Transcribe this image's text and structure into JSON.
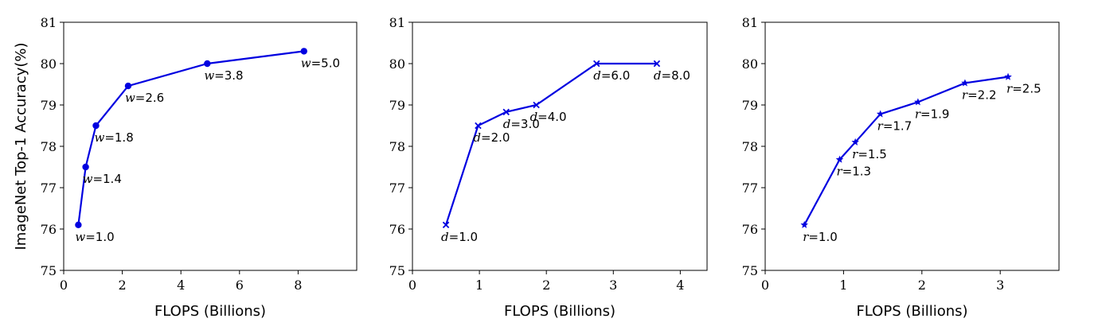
{
  "chart_data": [
    {
      "type": "line",
      "marker": "circle",
      "xlabel": "FLOPS (Billions)",
      "ylabel": "ImageNet Top-1 Accuracy(%)",
      "xlim": [
        0,
        10
      ],
      "ylim": [
        75,
        81
      ],
      "xticks": [
        "0",
        "2",
        "4",
        "6",
        "8"
      ],
      "yticks": [
        "75",
        "76",
        "77",
        "78",
        "79",
        "80",
        "81"
      ],
      "grid": false,
      "series_color": "#0000e0",
      "points": [
        {
          "x": 0.5,
          "y": 76.1,
          "var": "w",
          "val": "=1.0"
        },
        {
          "x": 0.75,
          "y": 77.5,
          "var": "w",
          "val": "=1.4"
        },
        {
          "x": 1.1,
          "y": 78.5,
          "var": "w",
          "val": "=1.8"
        },
        {
          "x": 2.2,
          "y": 79.46,
          "var": "w",
          "val": "=2.6"
        },
        {
          "x": 4.9,
          "y": 80.0,
          "var": "w",
          "val": "=3.8"
        },
        {
          "x": 8.2,
          "y": 80.3,
          "var": "w",
          "val": "=5.0"
        }
      ]
    },
    {
      "type": "line",
      "marker": "x",
      "xlabel": "FLOPS (Billions)",
      "ylabel": "",
      "xlim": [
        0,
        4.4
      ],
      "ylim": [
        75,
        81
      ],
      "xticks": [
        "0",
        "1",
        "2",
        "3",
        "4"
      ],
      "yticks": [
        "75",
        "76",
        "77",
        "78",
        "79",
        "80",
        "81"
      ],
      "grid": false,
      "series_color": "#0000e0",
      "points": [
        {
          "x": 0.5,
          "y": 76.1,
          "var": "d",
          "val": "=1.0"
        },
        {
          "x": 0.98,
          "y": 78.5,
          "var": "d",
          "val": "=2.0"
        },
        {
          "x": 1.4,
          "y": 78.83,
          "var": "d",
          "val": "=3.0"
        },
        {
          "x": 1.85,
          "y": 79.0,
          "var": "d",
          "val": "=4.0"
        },
        {
          "x": 2.75,
          "y": 80.0,
          "var": "d",
          "val": "=6.0"
        },
        {
          "x": 3.65,
          "y": 80.0,
          "var": "d",
          "val": "=8.0"
        }
      ]
    },
    {
      "type": "line",
      "marker": "star",
      "xlabel": "FLOPS (Billions)",
      "ylabel": "",
      "xlim": [
        0,
        3.75
      ],
      "ylim": [
        75,
        81
      ],
      "xticks": [
        "0",
        "1",
        "2",
        "3"
      ],
      "yticks": [
        "75",
        "76",
        "77",
        "78",
        "79",
        "80",
        "81"
      ],
      "grid": false,
      "series_color": "#0000e0",
      "points": [
        {
          "x": 0.5,
          "y": 76.1,
          "var": "r",
          "val": "=1.0"
        },
        {
          "x": 0.95,
          "y": 77.68,
          "var": "r",
          "val": "=1.3"
        },
        {
          "x": 1.15,
          "y": 78.1,
          "var": "r",
          "val": "=1.5"
        },
        {
          "x": 1.47,
          "y": 78.78,
          "var": "r",
          "val": "=1.7"
        },
        {
          "x": 1.95,
          "y": 79.07,
          "var": "r",
          "val": "=1.9"
        },
        {
          "x": 2.55,
          "y": 79.53,
          "var": "r",
          "val": "=2.2"
        },
        {
          "x": 3.1,
          "y": 79.68,
          "var": "r",
          "val": "=2.5"
        }
      ]
    }
  ]
}
